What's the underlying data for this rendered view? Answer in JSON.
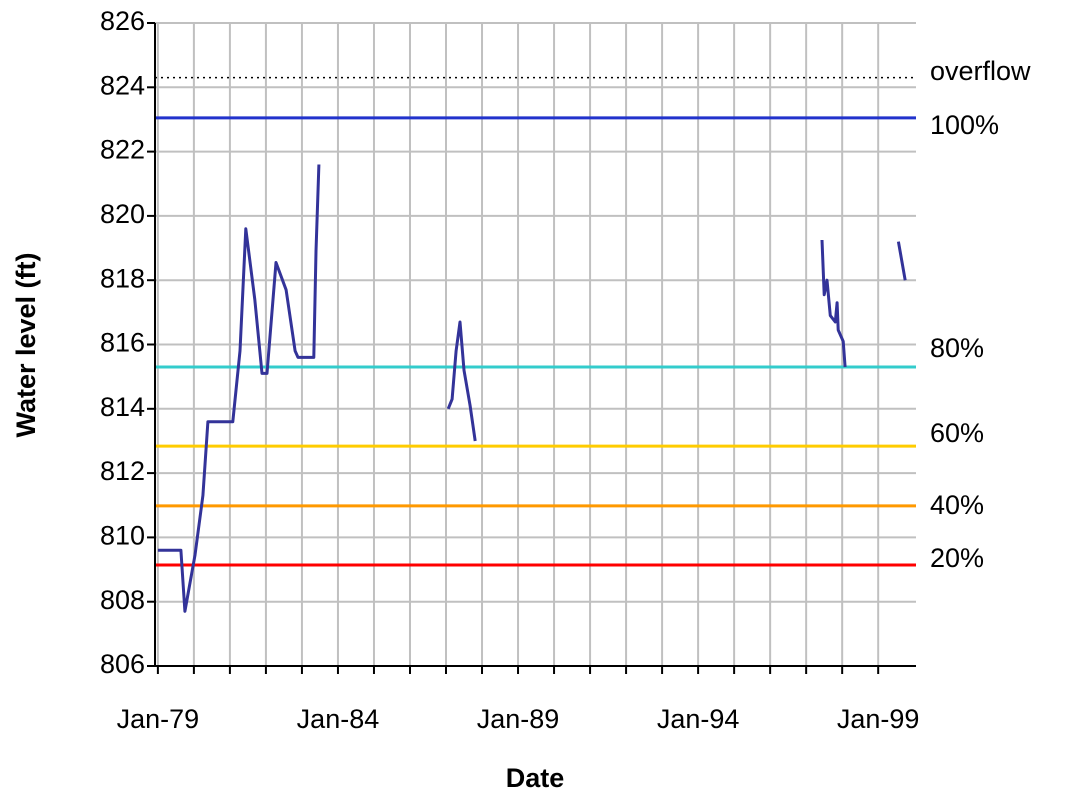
{
  "chart_data": {
    "type": "line",
    "xlabel": "Date",
    "ylabel": "Water level (ft)",
    "xlim": [
      1978.92,
      2000.05
    ],
    "ylim": [
      806,
      826
    ],
    "xticks": [
      {
        "value": 1979,
        "label": "Jan-79"
      },
      {
        "value": 1984,
        "label": "Jan-84"
      },
      {
        "value": 1989,
        "label": "Jan-89"
      },
      {
        "value": 1994,
        "label": "Jan-94"
      },
      {
        "value": 1999,
        "label": "Jan-99"
      }
    ],
    "minor_xticks": [
      1980,
      1981,
      1982,
      1983,
      1985,
      1986,
      1987,
      1988,
      1990,
      1991,
      1992,
      1993,
      1995,
      1996,
      1997,
      1998
    ],
    "yticks": [
      806,
      808,
      810,
      812,
      814,
      816,
      818,
      820,
      822,
      824,
      826
    ],
    "grid": true,
    "color": "#333399",
    "x": [
      1979.0,
      1979.64,
      1979.75,
      1980.03,
      1980.25,
      1980.39,
      1981.08,
      1981.28,
      1981.44,
      1981.69,
      1981.89,
      1982.03,
      1982.28,
      1982.56,
      1982.81,
      1982.89,
      1983.33,
      1983.39,
      1983.47,
      null,
      1987.06,
      1987.17,
      1987.28,
      1987.39,
      1987.5,
      1987.67,
      1987.81,
      null,
      1997.44,
      1997.5,
      1997.58,
      1997.67,
      1997.81,
      1997.86,
      1997.89,
      1998.03,
      1998.08,
      null,
      1999.56,
      1999.75
    ],
    "values": [
      809.6,
      809.6,
      807.7,
      809.45,
      811.3,
      813.6,
      813.6,
      815.8,
      819.6,
      817.4,
      815.1,
      815.1,
      818.55,
      817.7,
      815.8,
      815.6,
      815.6,
      818.9,
      821.6,
      null,
      814.0,
      814.3,
      815.8,
      816.7,
      815.2,
      814.1,
      813.0,
      null,
      819.25,
      817.55,
      818.0,
      816.9,
      816.7,
      817.3,
      816.45,
      816.1,
      815.3,
      null,
      819.2,
      818.0
    ],
    "reference_lines": [
      {
        "label": "overflow",
        "value": 824.3,
        "color": "#000000",
        "style": "dotted"
      },
      {
        "label": "100%",
        "value": 823.05,
        "color": "#2233cc",
        "style": "solid"
      },
      {
        "label": "80%",
        "value": 815.3,
        "color": "#33cccc",
        "style": "solid"
      },
      {
        "label": "60%",
        "value": 812.84,
        "color": "#ffcc00",
        "style": "solid"
      },
      {
        "label": "40%",
        "value": 810.98,
        "color": "#ff9900",
        "style": "solid"
      },
      {
        "label": "20%",
        "value": 809.14,
        "color": "#ff0000",
        "style": "solid"
      }
    ]
  }
}
